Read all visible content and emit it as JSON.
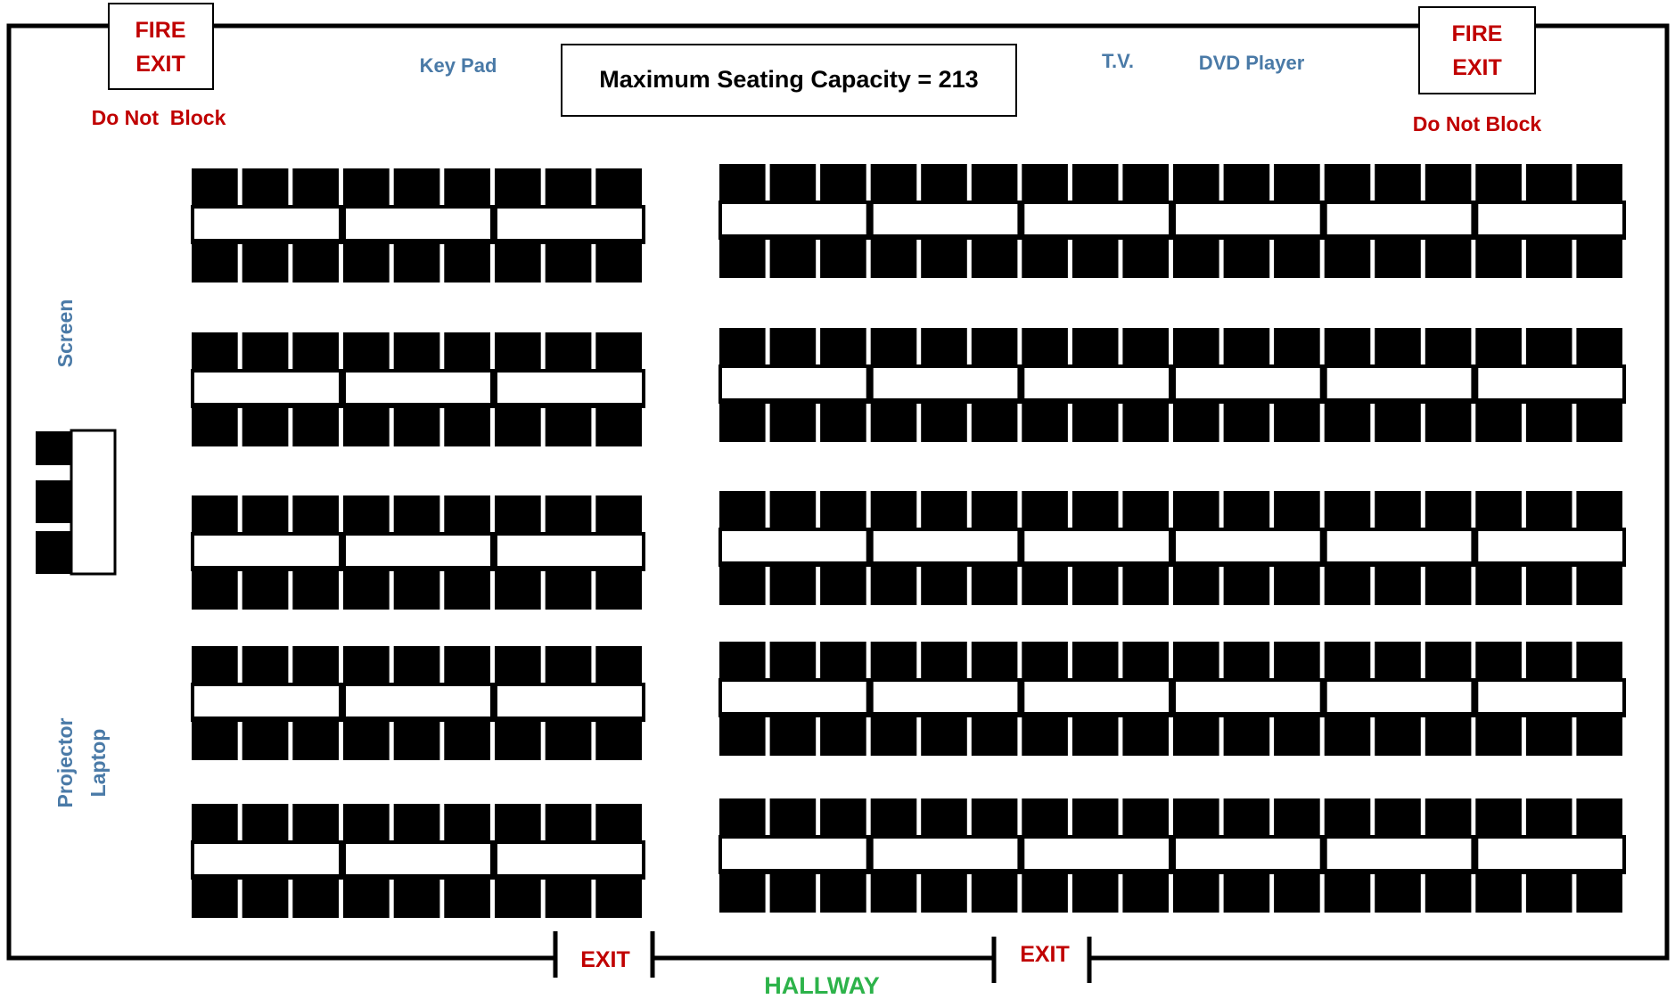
{
  "capacity_label": "Maximum Seating Capacity = 213",
  "fire_exit_left": {
    "line1": "FIRE",
    "line2": "EXIT",
    "note": "Do Not  Block"
  },
  "fire_exit_right": {
    "line1": "FIRE",
    "line2": "EXIT",
    "note": "Do Not Block"
  },
  "equipment": {
    "key_pad": "Key Pad",
    "tv": "T.V.",
    "dvd_player": "DVD Player",
    "screen": "Screen",
    "projector": "Projector",
    "laptop": "Laptop"
  },
  "exit_left": "EXIT",
  "exit_right": "EXIT",
  "hallway": "HALLWAY",
  "seating": {
    "left_block": {
      "rows": 5,
      "tables_per_row": 3,
      "seats_per_table_side": 3
    },
    "right_block": {
      "rows": 5,
      "tables_per_row": 6,
      "seats_per_table_side": 3
    }
  },
  "colors": {
    "fire_exit": "#c00000",
    "equipment": "#4a7aa7",
    "hallway": "#2db34a",
    "seat": "#000000"
  }
}
